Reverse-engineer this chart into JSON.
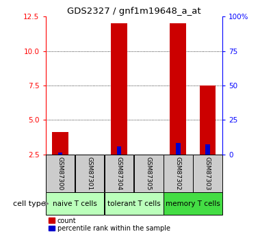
{
  "title": "GDS2327 / gnf1m19648_a_at",
  "samples": [
    "GSM87300",
    "GSM87301",
    "GSM87304",
    "GSM87305",
    "GSM87302",
    "GSM87303"
  ],
  "count_values": [
    4.1,
    2.5,
    12.0,
    2.5,
    12.0,
    7.5
  ],
  "percentile_values": [
    2.65,
    2.5,
    3.1,
    2.5,
    3.3,
    3.2
  ],
  "cell_types": [
    {
      "label": "naive T cells",
      "span": [
        0,
        2
      ],
      "color": "#bbffbb"
    },
    {
      "label": "tolerant T cells",
      "span": [
        2,
        4
      ],
      "color": "#bbffbb"
    },
    {
      "label": "memory T cells",
      "span": [
        4,
        6
      ],
      "color": "#44dd44"
    }
  ],
  "ylim_left": [
    2.5,
    12.5
  ],
  "yticks_left": [
    2.5,
    5.0,
    7.5,
    10.0,
    12.5
  ],
  "yticks_right": [
    0,
    25,
    50,
    75,
    100
  ],
  "bar_width": 0.55,
  "blue_bar_width": 0.15,
  "count_color": "#cc0000",
  "percentile_color": "#0000cc",
  "background_color": "#ffffff",
  "sample_box_color": "#cccccc",
  "cell_type_label": "cell type"
}
